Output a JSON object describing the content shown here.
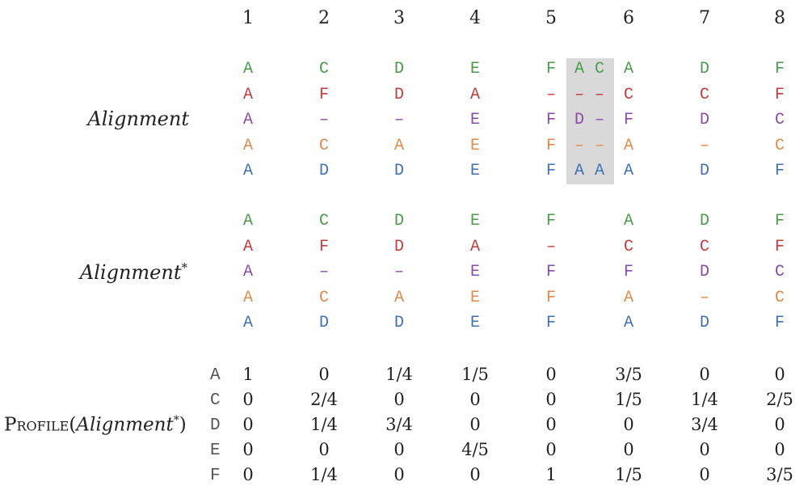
{
  "column_numbers": [
    "1",
    "2",
    "3",
    "4",
    "5",
    "6",
    "7",
    "8"
  ],
  "colors": {
    "green": "#4a9a4a",
    "red": "#c43b3b",
    "purple": "#8a4aa8",
    "orange": "#e08a4a",
    "blue": "#3f6fb5",
    "highlight": "#d9d9d9"
  },
  "alignment": {
    "label": "Alignment",
    "rows": [
      [
        "A",
        "C",
        "D",
        "E",
        "F",
        "A",
        "C",
        "A",
        "D",
        "F"
      ],
      [
        "A",
        "F",
        "D",
        "A",
        "–",
        "–",
        "–",
        "C",
        "C",
        "F"
      ],
      [
        "A",
        "–",
        "–",
        "E",
        "F",
        "D",
        "–",
        "F",
        "D",
        "C"
      ],
      [
        "A",
        "C",
        "A",
        "E",
        "F",
        "–",
        "–",
        "A",
        "–",
        "C"
      ],
      [
        "A",
        "D",
        "D",
        "E",
        "F",
        "A",
        "A",
        "A",
        "D",
        "F"
      ]
    ]
  },
  "alignment_star": {
    "label": "Alignment",
    "label_sup": "*",
    "rows": [
      [
        "A",
        "C",
        "D",
        "E",
        "F",
        "A",
        "D",
        "F"
      ],
      [
        "A",
        "F",
        "D",
        "A",
        "–",
        "C",
        "C",
        "F"
      ],
      [
        "A",
        "–",
        "–",
        "E",
        "F",
        "F",
        "D",
        "C"
      ],
      [
        "A",
        "C",
        "A",
        "E",
        "F",
        "A",
        "–",
        "C"
      ],
      [
        "A",
        "D",
        "D",
        "E",
        "F",
        "A",
        "D",
        "F"
      ]
    ]
  },
  "profile": {
    "title_prefix": "Profile",
    "title_open": "(",
    "title_arg": "Alignment",
    "title_sup": "*",
    "title_close": ")",
    "symbols": [
      "A",
      "C",
      "D",
      "E",
      "F"
    ],
    "rows": [
      [
        "1",
        "0",
        "1/4",
        "1/5",
        "0",
        "3/5",
        "0",
        "0"
      ],
      [
        "0",
        "2/4",
        "0",
        "0",
        "0",
        "1/5",
        "1/4",
        "2/5"
      ],
      [
        "0",
        "1/4",
        "3/4",
        "0",
        "0",
        "0",
        "3/4",
        "0"
      ],
      [
        "0",
        "0",
        "0",
        "4/5",
        "0",
        "0",
        "0",
        "0"
      ],
      [
        "0",
        "1/4",
        "0",
        "0",
        "1",
        "1/5",
        "0",
        "3/5"
      ]
    ]
  }
}
